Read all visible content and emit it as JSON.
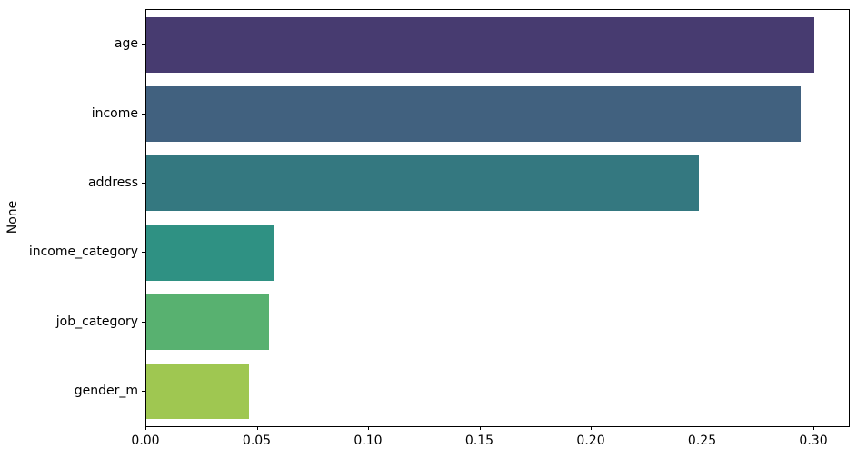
{
  "chart_data": {
    "type": "bar",
    "orientation": "horizontal",
    "title": "",
    "xlabel": "",
    "ylabel": "None",
    "categories": [
      "age",
      "income",
      "address",
      "income_category",
      "job_category",
      "gender_m"
    ],
    "values": [
      0.3,
      0.294,
      0.248,
      0.057,
      0.055,
      0.046
    ],
    "bar_colors": [
      "#473b70",
      "#41617f",
      "#347880",
      "#2f9183",
      "#58b170",
      "#9fc751"
    ],
    "palette_name": "viridis",
    "xlim": [
      0,
      0.3155
    ],
    "x_ticks": [
      0.0,
      0.05,
      0.1,
      0.15,
      0.2,
      0.25,
      0.3
    ],
    "x_tick_labels": [
      "0.00",
      "0.05",
      "0.10",
      "0.15",
      "0.20",
      "0.25",
      "0.30"
    ],
    "grid": false,
    "legend": null,
    "bar_width_fraction": 0.8
  }
}
